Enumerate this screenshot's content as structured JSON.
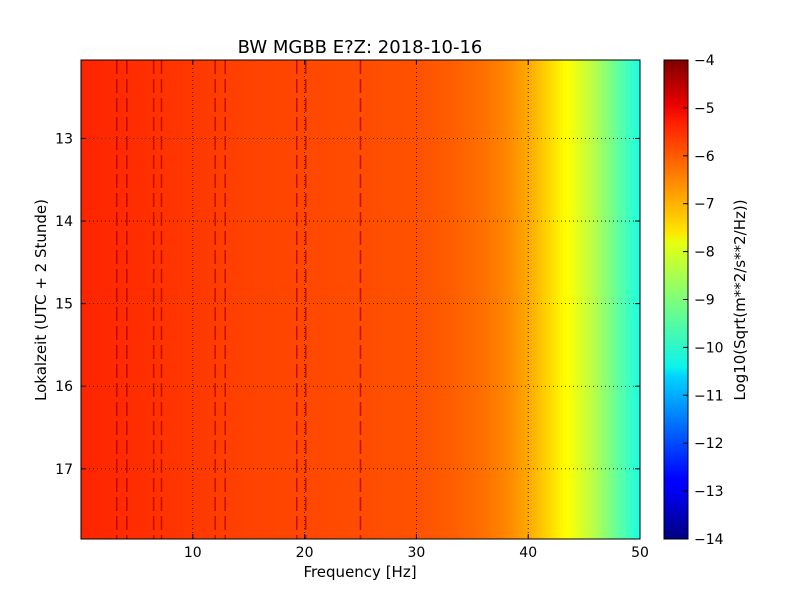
{
  "chart_data": {
    "type": "heatmap",
    "title": "BW MGBB E?Z: 2018-10-16",
    "xlabel": "Frequency [Hz]",
    "ylabel": "Lokalzeit (UTC + 2 Stunde)",
    "xlim": [
      0,
      50
    ],
    "ylim": [
      17.85,
      12.05
    ],
    "y_inverted": true,
    "xticks": [
      10,
      20,
      30,
      40,
      50
    ],
    "yticks": [
      13,
      14,
      15,
      16,
      17
    ],
    "grid": true,
    "grid_style": "dotted",
    "colormap": "jet",
    "colorbar": {
      "label": "Log10(Sqrt(m**2/s**2/Hz))",
      "range": [
        -14,
        -4
      ],
      "ticks": [
        -4,
        -5,
        -6,
        -7,
        -8,
        -9,
        -10,
        -11,
        -12,
        -13,
        -14
      ]
    },
    "profile": {
      "frequency_hz": [
        0,
        5,
        10,
        15,
        20,
        25,
        30,
        33,
        36,
        38,
        40,
        42,
        44,
        46,
        48,
        50
      ],
      "log10_amplitude": [
        -5.6,
        -5.7,
        -5.8,
        -5.9,
        -5.95,
        -6.0,
        -6.05,
        -6.15,
        -6.35,
        -6.55,
        -6.9,
        -7.4,
        -7.9,
        -8.5,
        -9.3,
        -10.0
      ]
    },
    "spectral_lines_hz": [
      3.2,
      4.1,
      6.5,
      7.2,
      12.0,
      12.9,
      19.3,
      20.1,
      25.0
    ]
  }
}
